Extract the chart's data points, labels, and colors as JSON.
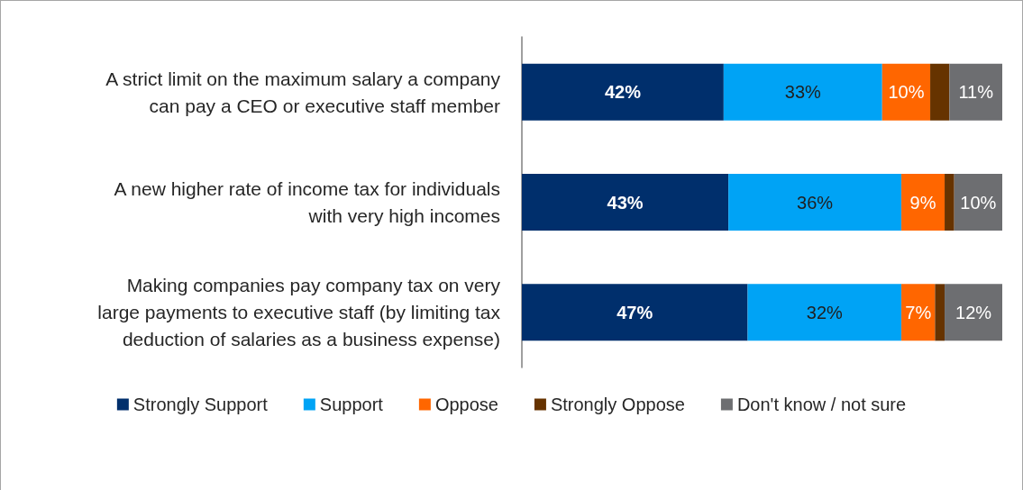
{
  "chart_data": {
    "type": "bar",
    "orientation": "horizontal",
    "stacked": true,
    "legend": "bottom",
    "xlim": [
      0,
      100
    ],
    "tick_labels": "y",
    "categories": [
      "A strict limit on the maximum salary a company\ncan pay a CEO or executive staff member",
      "A new higher rate of income tax for individuals\nwith very high incomes",
      "Making companies pay company tax on very\nlarge payments to executive staff (by limiting tax\ndeduction of salaries as a business expense)"
    ],
    "series": [
      {
        "name": "Strongly Support",
        "color": "#002f6c",
        "values": [
          42,
          43,
          47
        ],
        "value_labels": [
          "42%",
          "43%",
          "47%"
        ]
      },
      {
        "name": "Support",
        "color": "#00a3f5",
        "values": [
          33,
          36,
          32
        ],
        "value_labels": [
          "33%",
          "36%",
          "32%"
        ]
      },
      {
        "name": "Oppose",
        "color": "#ff6600",
        "values": [
          10,
          9,
          7
        ],
        "value_labels": [
          "10%",
          "9%",
          "7%"
        ]
      },
      {
        "name": "Strongly Oppose",
        "color": "#663300",
        "values": [
          4,
          2,
          2
        ],
        "value_labels": [
          null,
          null,
          null
        ]
      },
      {
        "name": "Don't know / not sure",
        "color": "#6d6e71",
        "values": [
          11,
          10,
          12
        ],
        "value_labels": [
          "11%",
          "10%",
          "12%"
        ]
      }
    ]
  }
}
